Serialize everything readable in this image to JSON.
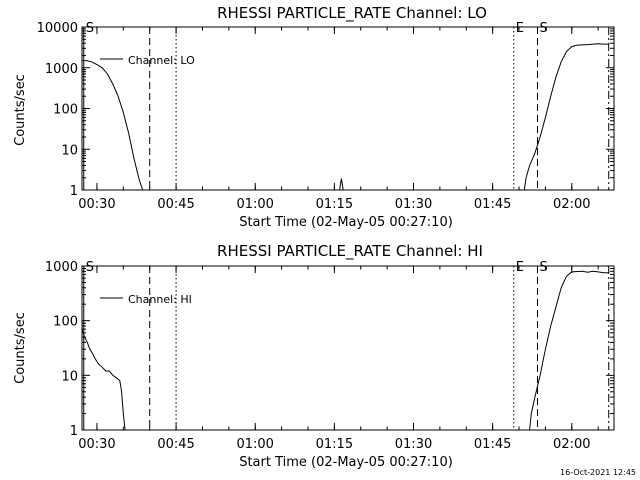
{
  "timestamp": "16-Oct-2021 12:45",
  "colors": {
    "background": "#ffffff",
    "foreground": "#000000"
  },
  "chart_data": [
    {
      "type": "line",
      "title": "RHESSI PARTICLE_RATE Channel: LO",
      "xlabel": "Start Time (02-May-05 00:27:10)",
      "ylabel": "Counts/sec",
      "xlim": [
        "00:27:10",
        "02:08:00"
      ],
      "ylim": [
        1,
        10000
      ],
      "yscale": "log",
      "xticks": [
        "00:30",
        "00:45",
        "01:00",
        "01:15",
        "01:30",
        "01:45",
        "02:00"
      ],
      "yticks": [
        "1",
        "10",
        "100",
        "1000",
        "10000"
      ],
      "legend": {
        "label": "Channel: LO",
        "position": "top-left"
      },
      "markers": [
        {
          "time": "00:27:30",
          "style": "solid",
          "label": "S"
        },
        {
          "time": "00:40:00",
          "style": "dashed",
          "label": ""
        },
        {
          "time": "00:45:00",
          "style": "dotted",
          "label": ""
        },
        {
          "time": "01:49:00",
          "style": "dotted",
          "label": "E"
        },
        {
          "time": "01:53:30",
          "style": "dashed",
          "label": "S"
        },
        {
          "time": "02:07:00",
          "style": "dashdot",
          "label": ""
        }
      ],
      "series": [
        {
          "name": "Channel: LO",
          "segments": [
            [
              [
                "00:27:10",
                1500
              ],
              [
                "00:28:00",
                1500
              ],
              [
                "00:29:00",
                1400
              ],
              [
                "00:30:00",
                1200
              ],
              [
                "00:31:00",
                1000
              ],
              [
                "00:32:00",
                700
              ],
              [
                "00:33:00",
                400
              ],
              [
                "00:34:00",
                200
              ],
              [
                "00:35:00",
                80
              ],
              [
                "00:36:00",
                25
              ],
              [
                "00:37:00",
                6
              ],
              [
                "00:38:00",
                1.8
              ],
              [
                "00:38:40",
                1
              ]
            ],
            [
              [
                "01:16:00",
                1
              ],
              [
                "01:16:20",
                1.9
              ],
              [
                "01:16:40",
                1
              ]
            ],
            [
              [
                "01:51:00",
                1
              ],
              [
                "01:51:20",
                2
              ],
              [
                "01:52:00",
                4
              ],
              [
                "01:53:00",
                8
              ],
              [
                "01:54:00",
                20
              ],
              [
                "01:55:00",
                60
              ],
              [
                "01:56:00",
                200
              ],
              [
                "01:57:00",
                600
              ],
              [
                "01:58:00",
                1400
              ],
              [
                "01:59:00",
                2500
              ],
              [
                "02:00:00",
                3300
              ],
              [
                "02:01:00",
                3600
              ],
              [
                "02:03:00",
                3700
              ],
              [
                "02:04:00",
                3800
              ],
              [
                "02:05:00",
                3900
              ],
              [
                "02:06:00",
                3800
              ],
              [
                "02:07:00",
                3800
              ]
            ]
          ]
        }
      ]
    },
    {
      "type": "line",
      "title": "RHESSI PARTICLE_RATE Channel: HI",
      "xlabel": "Start Time (02-May-05 00:27:10)",
      "ylabel": "Counts/sec",
      "xlim": [
        "00:27:10",
        "02:08:00"
      ],
      "ylim": [
        1,
        1000
      ],
      "yscale": "log",
      "xticks": [
        "00:30",
        "00:45",
        "01:00",
        "01:15",
        "01:30",
        "01:45",
        "02:00"
      ],
      "yticks": [
        "1",
        "10",
        "100",
        "1000"
      ],
      "legend": {
        "label": "Channel: HI",
        "position": "top-left"
      },
      "markers": [
        {
          "time": "00:27:30",
          "style": "solid",
          "label": "S"
        },
        {
          "time": "00:40:00",
          "style": "dashed",
          "label": ""
        },
        {
          "time": "00:45:00",
          "style": "dotted",
          "label": ""
        },
        {
          "time": "01:49:00",
          "style": "dotted",
          "label": "E"
        },
        {
          "time": "01:53:30",
          "style": "dashed",
          "label": "S"
        },
        {
          "time": "02:07:00",
          "style": "dashdot",
          "label": ""
        }
      ],
      "series": [
        {
          "name": "Channel: HI",
          "segments": [
            [
              [
                "00:27:10",
                70
              ],
              [
                "00:27:40",
                50
              ],
              [
                "00:28:10",
                40
              ],
              [
                "00:28:40",
                30
              ],
              [
                "00:29:10",
                25
              ],
              [
                "00:29:40",
                20
              ],
              [
                "00:30:20",
                16
              ],
              [
                "00:31:00",
                14
              ],
              [
                "00:31:40",
                12
              ],
              [
                "00:32:20",
                12
              ],
              [
                "00:33:00",
                10
              ],
              [
                "00:33:40",
                9
              ],
              [
                "00:34:20",
                8
              ],
              [
                "00:34:40",
                5
              ],
              [
                "00:35:00",
                2
              ],
              [
                "00:35:20",
                1
              ]
            ],
            [
              [
                "01:52:00",
                1
              ],
              [
                "01:52:20",
                2
              ],
              [
                "01:53:00",
                4
              ],
              [
                "01:54:00",
                10
              ],
              [
                "01:55:00",
                30
              ],
              [
                "01:56:00",
                80
              ],
              [
                "01:57:00",
                180
              ],
              [
                "01:58:00",
                400
              ],
              [
                "01:59:00",
                650
              ],
              [
                "02:00:00",
                780
              ],
              [
                "02:02:00",
                800
              ],
              [
                "02:03:00",
                770
              ],
              [
                "02:04:00",
                800
              ],
              [
                "02:05:00",
                780
              ],
              [
                "02:06:00",
                750
              ],
              [
                "02:07:00",
                750
              ]
            ]
          ]
        }
      ]
    }
  ]
}
